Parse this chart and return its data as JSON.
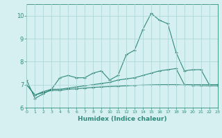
{
  "x": [
    0,
    1,
    2,
    3,
    4,
    5,
    6,
    7,
    8,
    9,
    10,
    11,
    12,
    13,
    14,
    15,
    16,
    17,
    18,
    19,
    20,
    21,
    22,
    23
  ],
  "line1": [
    7.2,
    6.4,
    6.6,
    6.8,
    7.3,
    7.4,
    7.3,
    7.3,
    7.5,
    7.6,
    7.2,
    7.4,
    8.3,
    8.5,
    9.4,
    10.1,
    9.8,
    9.65,
    8.4,
    7.6,
    7.65,
    7.65,
    7.0,
    7.0
  ],
  "line2": [
    7.0,
    6.55,
    6.7,
    6.8,
    6.8,
    6.85,
    6.9,
    6.95,
    7.0,
    7.05,
    7.1,
    7.2,
    7.25,
    7.3,
    7.4,
    7.5,
    7.6,
    7.65,
    7.7,
    7.0,
    7.0,
    7.0,
    7.0,
    7.0
  ],
  "line3": [
    7.0,
    6.55,
    6.65,
    6.75,
    6.75,
    6.8,
    6.82,
    6.85,
    6.88,
    6.9,
    6.92,
    6.93,
    6.95,
    6.97,
    6.98,
    6.99,
    7.0,
    7.0,
    7.0,
    6.98,
    6.97,
    6.96,
    6.95,
    6.95
  ],
  "line_color": "#2e8b7a",
  "bg_color": "#d6eff0",
  "grid_color": "#b0d8da",
  "xlabel": "Humidex (Indice chaleur)",
  "ylim": [
    6,
    10.5
  ],
  "xlim": [
    0,
    23
  ]
}
